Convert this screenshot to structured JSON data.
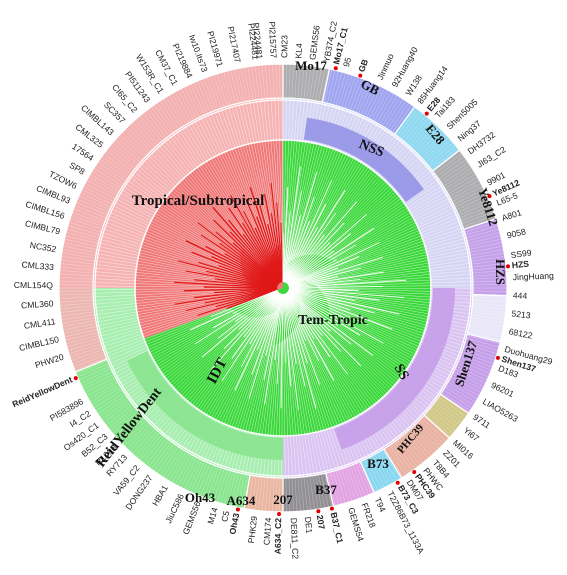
{
  "colors": {
    "tropical": "#f08c8c",
    "tropical_core": "#e02020",
    "reid": "#7fe08a",
    "tem_tropic": "#33d633",
    "purple": "#b98be8",
    "mo17": "#9aa0f0",
    "gb": "#88d8f0",
    "grey": "#a9a9a9",
    "nss": "#8f8fe6",
    "hzs": "#6fa8e0",
    "b73": "#e8a890",
    "a634": "#8a8a8a",
    "oh43": "#f0b0a0",
    "i207": "#e2a0e0",
    "b37": "#80d8f0",
    "phc39": "#c8c070",
    "highlight": "#e00000",
    "line": "#ffffff"
  },
  "groups": [
    {
      "name": "Tropical/Subtropical",
      "a0": 270,
      "a1": 360.0,
      "color": "#ef8686",
      "inner": 0.0
    },
    {
      "name": "ReidYellowDent",
      "a0": 180,
      "a1": 270,
      "color": "#86e38c",
      "inner": 0.0
    },
    {
      "name": "Tem-Tropic",
      "a0": 90,
      "a1": 180,
      "color": "#43d840",
      "inner": 0.0
    }
  ],
  "outer_segments": [
    {
      "label": "",
      "a0": 0,
      "a1": 12,
      "color": "#a9a9a9"
    },
    {
      "label": "Mo17",
      "a0": 12,
      "a1": 36,
      "color": "#9aa0f0"
    },
    {
      "label": "GB",
      "a0": 36,
      "a1": 52,
      "color": "#88d8f0"
    },
    {
      "label": "E28",
      "a0": 52,
      "a1": 72,
      "color": "#a9a9a9"
    },
    {
      "label": "Ye8112",
      "a0": 72,
      "a1": 92,
      "color": "#c39be8"
    },
    {
      "label": "HZS",
      "a0": 92,
      "a1": 104,
      "color": "#e9eaf7"
    },
    {
      "label": "Shen137",
      "a0": 104,
      "a1": 124,
      "color": "#c39be8"
    },
    {
      "label": "PHC39",
      "a0": 124,
      "a1": 132,
      "color": "#cfc97c"
    },
    {
      "label": "B73",
      "a0": 132,
      "a1": 148,
      "color": "#eab09a"
    },
    {
      "label": "B37",
      "a0": 148,
      "a1": 156,
      "color": "#80d8f0"
    },
    {
      "label": "207",
      "a0": 156,
      "a1": 167,
      "color": "#e2a0e0"
    },
    {
      "label": "A634",
      "a0": 167,
      "a1": 180,
      "color": "#8a8a8a"
    },
    {
      "label": "Oh43",
      "a0": 180,
      "a1": 190,
      "color": "#f0b0a0"
    },
    {
      "label": "ReidYellowDent",
      "a0": 190,
      "a1": 248,
      "color": "#86e38c"
    },
    {
      "label": "",
      "a0": 248,
      "a1": 360,
      "color": "#f3b0b0"
    }
  ],
  "inner_segments": [
    {
      "label": "NSS",
      "a0": 8,
      "a1": 55,
      "color": "#8f8fe6"
    },
    {
      "label": "SS",
      "a0": 90,
      "a1": 160,
      "color": "#c39be8"
    },
    {
      "label": "IDT",
      "a0": 180,
      "a1": 245,
      "color": "#86e38c"
    }
  ],
  "leaf_labels": [
    {
      "text": "PI224481",
      "angle": -6.0,
      "red": false
    },
    {
      "text": "PI215757",
      "angle": -2.5,
      "red": false
    },
    {
      "text": "CM23",
      "angle": 0.5,
      "red": false
    },
    {
      "text": "KL4",
      "angle": 4.0,
      "red": false
    },
    {
      "text": "GEMS56",
      "angle": 7.5,
      "red": false
    },
    {
      "text": "YB374_C2",
      "angle": 11.0,
      "red": false
    },
    {
      "text": "Mo17_C1",
      "angle": 13.5,
      "red": true
    },
    {
      "text": "95",
      "angle": 16.0,
      "red": false
    },
    {
      "text": "GB",
      "angle": 20.0,
      "red": true
    },
    {
      "text": "Jinmuo",
      "angle": 25.0,
      "red": false
    },
    {
      "text": "92Huang40",
      "angle": 29.0,
      "red": false
    },
    {
      "text": "W138",
      "angle": 33.0,
      "red": false
    },
    {
      "text": "85Huang14",
      "angle": 36.5,
      "red": false
    },
    {
      "text": "E28",
      "angle": 39.5,
      "red": true
    },
    {
      "text": "Tai183",
      "angle": 42.0,
      "red": false
    },
    {
      "text": "Shen5005",
      "angle": 46.0,
      "red": false
    },
    {
      "text": "Ning37",
      "angle": 50.0,
      "red": false
    },
    {
      "text": "DH3732",
      "angle": 54.0,
      "red": false
    },
    {
      "text": "JI63_C2",
      "angle": 58.0,
      "red": false
    },
    {
      "text": "9901",
      "angle": 63.0,
      "red": false
    },
    {
      "text": "Ye8112",
      "angle": 66.0,
      "red": true
    },
    {
      "text": "L65-5",
      "angle": 68.5,
      "red": false
    },
    {
      "text": "A801",
      "angle": 72.5,
      "red": false
    },
    {
      "text": "9058",
      "angle": 77.0,
      "red": false
    },
    {
      "text": "SS99",
      "angle": 82.0,
      "red": false
    },
    {
      "text": "HZS",
      "angle": 84.5,
      "red": true
    },
    {
      "text": "JingHuang",
      "angle": 87.5,
      "red": false
    },
    {
      "text": "444",
      "angle": 92.0,
      "red": false
    },
    {
      "text": "5213",
      "angle": 96.5,
      "red": false
    },
    {
      "text": "68122",
      "angle": 101.0,
      "red": false
    },
    {
      "text": "Duohuang29",
      "angle": 105.5,
      "red": false
    },
    {
      "text": "Shen137",
      "angle": 108.0,
      "red": true
    },
    {
      "text": "D183",
      "angle": 110.5,
      "red": false
    },
    {
      "text": "96201",
      "angle": 115.0,
      "red": false
    },
    {
      "text": "LIAO5263",
      "angle": 119.5,
      "red": false
    },
    {
      "text": "9711",
      "angle": 124.0,
      "red": false
    },
    {
      "text": "Yi67",
      "angle": 128.0,
      "red": false
    },
    {
      "text": "MI016",
      "angle": 132.0,
      "red": false
    },
    {
      "text": "ZZ01",
      "angle": 135.5,
      "red": false
    },
    {
      "text": "T8B4",
      "angle": 139.0,
      "red": false
    },
    {
      "text": "PHWC",
      "angle": 142.0,
      "red": false
    },
    {
      "text": "PHC39",
      "angle": 144.5,
      "red": true
    },
    {
      "text": "DM07",
      "angle": 147.0,
      "red": false
    },
    {
      "text": "B73_C3",
      "angle": 149.5,
      "red": true
    },
    {
      "text": "T2Z86B73_1133A",
      "angle": 152.5,
      "red": false
    },
    {
      "text": "T94",
      "angle": 156.0,
      "red": false
    },
    {
      "text": "FR218",
      "angle": 159.5,
      "red": false
    },
    {
      "text": "GEMS54",
      "angle": 163.0,
      "red": false
    },
    {
      "text": "B37_C1",
      "angle": 167.5,
      "red": true
    },
    {
      "text": "207",
      "angle": 171.0,
      "red": true
    },
    {
      "text": "DE1",
      "angle": 174.0,
      "red": false
    },
    {
      "text": "DE811_C2",
      "angle": 177.5,
      "red": false
    },
    {
      "text": "A634_C2",
      "angle": 181.0,
      "red": true
    },
    {
      "text": "CM174",
      "angle": 183.5,
      "red": false
    },
    {
      "text": "PHK29",
      "angle": 187.0,
      "red": false
    },
    {
      "text": "Oh43",
      "angle": 191.5,
      "red": true
    },
    {
      "text": "C5",
      "angle": 194.0,
      "red": false
    },
    {
      "text": "M14",
      "angle": 197.0,
      "red": false
    },
    {
      "text": "GEMS56",
      "angle": 201.5,
      "red": false
    },
    {
      "text": "JiuC586",
      "angle": 206.0,
      "red": false
    },
    {
      "text": "HBA1",
      "angle": 210.5,
      "red": false
    },
    {
      "text": "DONG237",
      "angle": 215.0,
      "red": false
    },
    {
      "text": "VA59_C2",
      "angle": 219.0,
      "red": false
    },
    {
      "text": "RY713",
      "angle": 223.0,
      "red": false
    },
    {
      "text": "R109B",
      "angle": 226.5,
      "red": false
    },
    {
      "text": "B52_C3",
      "angle": 230.0,
      "red": false
    },
    {
      "text": "Os420_C1",
      "angle": 233.5,
      "red": false
    },
    {
      "text": "I4_C2",
      "angle": 237.0,
      "red": false
    },
    {
      "text": "PI583896",
      "angle": 240.5,
      "red": false
    },
    {
      "text": "ReidYellowDent",
      "angle": 246.5,
      "red": true
    },
    {
      "text": "PHW20",
      "angle": 252.5,
      "red": false
    },
    {
      "text": "CIMBL150",
      "angle": 257.0,
      "red": false
    },
    {
      "text": "CML411",
      "angle": 261.5,
      "red": false
    },
    {
      "text": "CML360",
      "angle": 266.0,
      "red": false
    },
    {
      "text": "CML154Q",
      "angle": 270.5,
      "red": false
    },
    {
      "text": "CML333",
      "angle": 275.0,
      "red": false
    },
    {
      "text": "NC352",
      "angle": 279.5,
      "red": false
    },
    {
      "text": "CIMBL79",
      "angle": 284.0,
      "red": false
    },
    {
      "text": "CIMBL156",
      "angle": 288.0,
      "red": false
    },
    {
      "text": "CIMBL93",
      "angle": 292.0,
      "red": false
    },
    {
      "text": "TZOW6",
      "angle": 296.0,
      "red": false
    },
    {
      "text": "SP8",
      "angle": 300.0,
      "red": false
    },
    {
      "text": "17564",
      "angle": 304.0,
      "red": false
    },
    {
      "text": "CML325",
      "angle": 308.0,
      "red": false
    },
    {
      "text": "CIMBL143",
      "angle": 312.0,
      "red": false
    },
    {
      "text": "SC357",
      "angle": 316.0,
      "red": false
    },
    {
      "text": "CI65_C2",
      "angle": 320.0,
      "red": false
    },
    {
      "text": "PI511243",
      "angle": 324.0,
      "red": false
    },
    {
      "text": "W153R_C1",
      "angle": 328.0,
      "red": false
    },
    {
      "text": "CM37_C1",
      "angle": 332.0,
      "red": false
    },
    {
      "text": "PI219884",
      "angle": 336.0,
      "red": false
    },
    {
      "text": "Iw10.Its73",
      "angle": 340.0,
      "red": false
    },
    {
      "text": "PI219971",
      "angle": 344.0,
      "red": false
    },
    {
      "text": "PI217407",
      "angle": 348.5,
      "red": false
    },
    {
      "text": "PI224481",
      "angle": 353.0,
      "red": false
    }
  ],
  "labels": {
    "tropical": "Tropical/Subtropical",
    "tem_tropic": "Tem-Tropic",
    "idt": "IDT",
    "ss": "SS",
    "nss": "NSS",
    "reid": "ReidYellowDent",
    "mo17": "Mo17",
    "gb": "GB",
    "e28": "E28",
    "ye8112": "Ye8112",
    "hzs": "HZS",
    "shen137": "Shen137",
    "phc39": "PHC39",
    "b73": "B73",
    "b37": "B37",
    "i207": "207",
    "a634": "A634",
    "oh43": "Oh43"
  }
}
